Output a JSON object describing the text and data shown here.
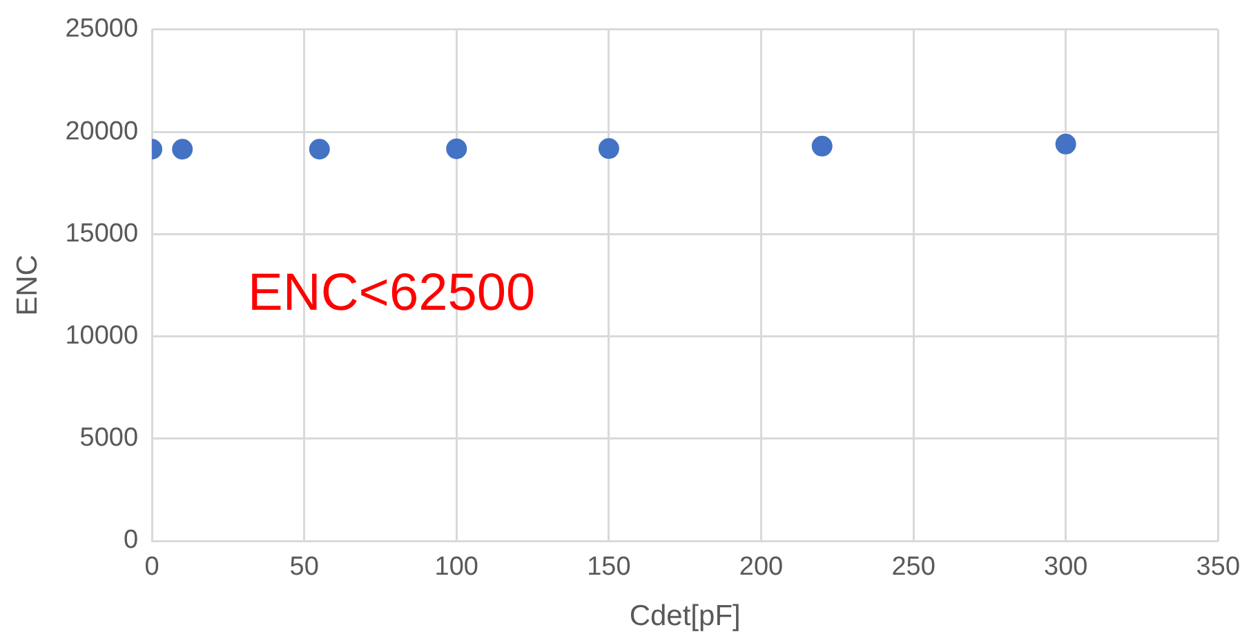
{
  "chart_data": {
    "type": "scatter",
    "xlabel": "Cdet[pF]",
    "ylabel": "ENC",
    "x": [
      0,
      10,
      55,
      100,
      150,
      220,
      300
    ],
    "series": [
      {
        "color": "#4472c4",
        "values": [
          19150,
          19150,
          19150,
          19170,
          19180,
          19300,
          19400
        ]
      }
    ],
    "xlim": [
      0,
      350
    ],
    "xticks": [
      0,
      50,
      100,
      150,
      200,
      250,
      300,
      350
    ],
    "ylim": [
      0,
      25000
    ],
    "yticks": [
      0,
      5000,
      10000,
      15000,
      20000,
      25000
    ],
    "annotations": [
      "ENC<62500"
    ],
    "grid": true,
    "legend": false,
    "marker": "circle"
  }
}
